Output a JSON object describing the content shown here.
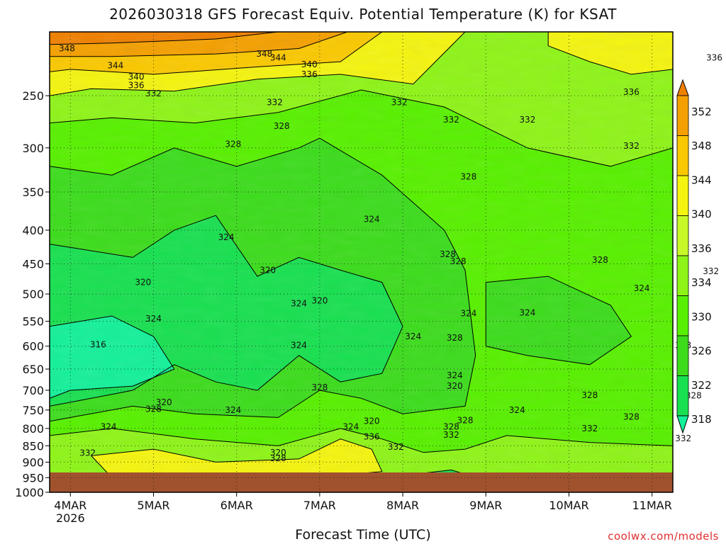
{
  "title": "2026030318 GFS Forecast Equiv. Potential Temperature (K) for KSAT",
  "xlabel": "Forecast Time (UTC)",
  "watermark": "coolwx.com/models",
  "chart_data": {
    "type": "heatmap",
    "title": "2026030318 GFS Forecast Equiv. Potential Temperature (K) for KSAT",
    "xlabel": "Forecast Time (UTC)",
    "ylabel": "",
    "x_ticks": [
      "4MAR 2026",
      "5MAR",
      "6MAR",
      "7MAR",
      "8MAR",
      "9MAR",
      "10MAR",
      "11MAR"
    ],
    "x_range": [
      "2026-03-03T18",
      "2026-03-11T06"
    ],
    "y_ticks": [
      250,
      300,
      350,
      400,
      450,
      500,
      550,
      600,
      650,
      700,
      750,
      800,
      850,
      900,
      950,
      1000
    ],
    "y_range": [
      200,
      1000
    ],
    "y_scale": "log-pressure",
    "y_inverted": true,
    "grid": true,
    "colorbar": {
      "levels": [
        318,
        322,
        326,
        330,
        334,
        336,
        340,
        344,
        348,
        352
      ],
      "colors": [
        "#14f09a",
        "#18e050",
        "#3cdc1c",
        "#58f000",
        "#8ef418",
        "#c8f828",
        "#f4f410",
        "#fac800",
        "#f4a000",
        "#f08000"
      ],
      "extend": "both"
    },
    "contour_labels": [
      {
        "x": "2026-03-03T23",
        "p": 212,
        "value": 348
      },
      {
        "x": "2026-03-04T13",
        "p": 225,
        "value": 344
      },
      {
        "x": "2026-03-04T19",
        "p": 234,
        "value": 340
      },
      {
        "x": "2026-03-04T19",
        "p": 241,
        "value": 336
      },
      {
        "x": "2026-03-05T00",
        "p": 248,
        "value": 332
      },
      {
        "x": "2026-03-06T08",
        "p": 216,
        "value": 348
      },
      {
        "x": "2026-03-06T12",
        "p": 219,
        "value": 344
      },
      {
        "x": "2026-03-06T21",
        "p": 224,
        "value": 340
      },
      {
        "x": "2026-03-06T21",
        "p": 232,
        "value": 336
      },
      {
        "x": "2026-03-06T11",
        "p": 256,
        "value": 332
      },
      {
        "x": "2026-03-06T13",
        "p": 278,
        "value": 328
      },
      {
        "x": "2026-03-05T23",
        "p": 296,
        "value": 328
      },
      {
        "x": "2026-03-05T21",
        "p": 410,
        "value": 324
      },
      {
        "x": "2026-03-06T09",
        "p": 460,
        "value": 320
      },
      {
        "x": "2026-03-04T21",
        "p": 480,
        "value": 320
      },
      {
        "x": "2026-03-05T00",
        "p": 545,
        "value": 324
      },
      {
        "x": "2026-03-04T08",
        "p": 597,
        "value": 316
      },
      {
        "x": "2026-03-06T18",
        "p": 517,
        "value": 324
      },
      {
        "x": "2026-03-07T00",
        "p": 512,
        "value": 320
      },
      {
        "x": "2026-03-06T18",
        "p": 598,
        "value": 324
      },
      {
        "x": "2026-03-07T15",
        "p": 385,
        "value": 324
      },
      {
        "x": "2026-03-07T23",
        "p": 256,
        "value": 332
      },
      {
        "x": "2026-03-08T14",
        "p": 272,
        "value": 332
      },
      {
        "x": "2026-03-08T19",
        "p": 332,
        "value": 328
      },
      {
        "x": "2026-03-08T13",
        "p": 435,
        "value": 328
      },
      {
        "x": "2026-03-08T16",
        "p": 446,
        "value": 328
      },
      {
        "x": "2026-03-08T03",
        "p": 580,
        "value": 324
      },
      {
        "x": "2026-03-08T19",
        "p": 535,
        "value": 324
      },
      {
        "x": "2026-03-08T15",
        "p": 583,
        "value": 328
      },
      {
        "x": "2026-03-08T15",
        "p": 665,
        "value": 324
      },
      {
        "x": "2026-03-08T15",
        "p": 690,
        "value": 320
      },
      {
        "x": "2026-03-07T00",
        "p": 693,
        "value": 328
      },
      {
        "x": "2026-03-05T03",
        "p": 730,
        "value": 320
      },
      {
        "x": "2026-03-05T00",
        "p": 748,
        "value": 328
      },
      {
        "x": "2026-03-05T23",
        "p": 750,
        "value": 324
      },
      {
        "x": "2026-03-04T11",
        "p": 795,
        "value": 324
      },
      {
        "x": "2026-03-04T05",
        "p": 872,
        "value": 332
      },
      {
        "x": "2026-03-06T12",
        "p": 870,
        "value": 320
      },
      {
        "x": "2026-03-06T12",
        "p": 888,
        "value": 328
      },
      {
        "x": "2026-03-07T09",
        "p": 795,
        "value": 324
      },
      {
        "x": "2026-03-07T15",
        "p": 780,
        "value": 320
      },
      {
        "x": "2026-03-07T15",
        "p": 823,
        "value": 336
      },
      {
        "x": "2026-03-07T22",
        "p": 853,
        "value": 332
      },
      {
        "x": "2026-03-08T14",
        "p": 795,
        "value": 328
      },
      {
        "x": "2026-03-08T14",
        "p": 818,
        "value": 332
      },
      {
        "x": "2026-03-08T18",
        "p": 778,
        "value": 328
      },
      {
        "x": "2026-03-09T09",
        "p": 750,
        "value": 324
      },
      {
        "x": "2026-03-10T06",
        "p": 712,
        "value": 328
      },
      {
        "x": "2026-03-10T06",
        "p": 800,
        "value": 332
      },
      {
        "x": "2026-03-10T18",
        "p": 768,
        "value": 328
      },
      {
        "x": "2026-03-11T09",
        "p": 828,
        "value": 332
      },
      {
        "x": "2026-03-11T12",
        "p": 713,
        "value": 328
      },
      {
        "x": "2026-03-11T09",
        "p": 598,
        "value": 328
      },
      {
        "x": "2026-03-10T21",
        "p": 490,
        "value": 324
      },
      {
        "x": "2026-03-11T17",
        "p": 462,
        "value": 332
      },
      {
        "x": "2026-03-10T09",
        "p": 444,
        "value": 328
      },
      {
        "x": "2026-03-09T12",
        "p": 534,
        "value": 324
      },
      {
        "x": "2026-03-10T18",
        "p": 298,
        "value": 332
      },
      {
        "x": "2026-03-10T18",
        "p": 247,
        "value": 336
      },
      {
        "x": "2026-03-11T18",
        "p": 219,
        "value": 336
      },
      {
        "x": "2026-03-09T12",
        "p": 272,
        "value": 332
      }
    ]
  }
}
